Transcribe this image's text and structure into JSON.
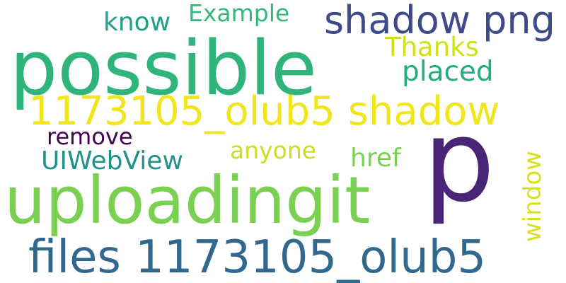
{
  "words": {
    "possible": {
      "text": "possible",
      "color": "#2fb47c"
    },
    "shadow_png": {
      "text": "shadow png",
      "color": "#3e4a89"
    },
    "example": {
      "text": "Example",
      "color": "#35b779"
    },
    "know": {
      "text": "know",
      "color": "#1fa187"
    },
    "thanks": {
      "text": "Thanks",
      "color": "#d0e11c"
    },
    "placed": {
      "text": "placed",
      "color": "#25ac82"
    },
    "olub5_shadow": {
      "text": "1173105_olub5 shadow",
      "color": "#f1e51d"
    },
    "remove": {
      "text": "remove",
      "color": "#440154"
    },
    "anyone": {
      "text": "anyone",
      "color": "#c8e020"
    },
    "uiwebview": {
      "text": "UIWebView",
      "color": "#21918c"
    },
    "href": {
      "text": "href",
      "color": "#7ad151"
    },
    "p": {
      "text": "p",
      "color": "#482576"
    },
    "uploadingit": {
      "text": "uploadingit",
      "color": "#7ad151"
    },
    "window": {
      "text": "window",
      "color": "#d8e219"
    },
    "files_olub5": {
      "text": "files 1173105_olub5",
      "color": "#31688e"
    }
  }
}
